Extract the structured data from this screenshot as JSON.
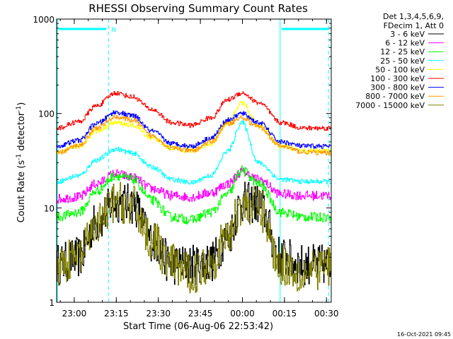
{
  "chart_data": {
    "type": "line",
    "title": "RHESSI Observing Summary Count Rates",
    "xlabel": "Start Time (06-Aug-06 22:53:42)",
    "ylabel": "Count Rate (s",
    "ylabel_sup1": "-1",
    "ylabel_mid": " detector",
    "ylabel_sup2": "-1",
    "ylabel_end": ")",
    "y_scale": "log",
    "ylim": [
      1,
      1000
    ],
    "xlim_minutes_after_start": [
      0,
      98
    ],
    "x_ticks": [
      {
        "label": "23:00",
        "minutes": 6.3
      },
      {
        "label": "23:15",
        "minutes": 21.3
      },
      {
        "label": "23:30",
        "minutes": 36.3
      },
      {
        "label": "23:45",
        "minutes": 51.3
      },
      {
        "label": "00:00",
        "minutes": 66.3
      },
      {
        "label": "00:15",
        "minutes": 81.3
      },
      {
        "label": "00:30",
        "minutes": 96.3
      }
    ],
    "y_ticks": [
      {
        "label": "1",
        "value": 1
      },
      {
        "label": "10",
        "value": 10
      },
      {
        "label": "100",
        "value": 100
      },
      {
        "label": "1000",
        "value": 1000
      }
    ],
    "legend": {
      "header1": "Det 1,3,4,5,6,9,",
      "header2": "FDecim 1, Att 0",
      "placement": "right"
    },
    "night_periods_minutes": [
      [
        0,
        18.5
      ],
      [
        79.5,
        98
      ]
    ],
    "night_label": "N",
    "saa_markers_minutes": [
      18.5,
      97
    ],
    "series": [
      {
        "name": "3 - 6 keV",
        "color": "#000000",
        "values": [
          2.5,
          3.0,
          7.0,
          11.5,
          11.0,
          4.5,
          2.5,
          2.5,
          2.7,
          5.0,
          11.5,
          11.0,
          3.0,
          2.5,
          2.5
        ]
      },
      {
        "name": "6 - 12 keV",
        "color": "#ff00ff",
        "values": [
          12.5,
          13.0,
          18.0,
          23.0,
          21.0,
          16.0,
          13.5,
          13.0,
          14.5,
          18.0,
          24.0,
          20.0,
          14.0,
          13.5,
          13.5
        ]
      },
      {
        "name": "12 - 25 keV",
        "color": "#00ff00",
        "values": [
          8.0,
          9.0,
          15.0,
          22.0,
          20.0,
          12.0,
          8.0,
          7.5,
          9.0,
          14.0,
          25.0,
          18.0,
          9.0,
          8.0,
          8.0
        ]
      },
      {
        "name": "25 - 50 keV",
        "color": "#00ffff",
        "values": [
          19.0,
          22.0,
          32.0,
          42.0,
          38.0,
          27.0,
          20.0,
          18.5,
          22.0,
          40.0,
          80.0,
          30.0,
          20.0,
          19.0,
          19.0
        ]
      },
      {
        "name": "50 - 100 keV",
        "color": "#ffff00",
        "values": [
          38.0,
          45.0,
          65.0,
          80.0,
          75.0,
          55.0,
          43.0,
          40.0,
          48.0,
          80.0,
          130.0,
          75.0,
          45.0,
          40.0,
          40.0
        ]
      },
      {
        "name": "100 - 300 keV",
        "color": "#ff0000",
        "values": [
          70.0,
          82.0,
          120.0,
          165.0,
          150.0,
          110.0,
          80.0,
          75.0,
          90.0,
          140.0,
          165.0,
          130.0,
          80.0,
          70.0,
          70.0
        ]
      },
      {
        "name": "300 - 800 keV",
        "color": "#0000ff",
        "values": [
          45.0,
          52.0,
          78.0,
          103.0,
          95.0,
          65.0,
          48.0,
          45.0,
          55.0,
          85.0,
          100.0,
          80.0,
          50.0,
          45.0,
          45.0
        ]
      },
      {
        "name": "800 - 7000 keV",
        "color": "#ff9900",
        "values": [
          38.0,
          46.0,
          70.0,
          92.0,
          85.0,
          58.0,
          43.0,
          40.0,
          50.0,
          78.0,
          90.0,
          72.0,
          45.0,
          39.0,
          38.0
        ]
      },
      {
        "name": "7000 - 15000 keV",
        "color": "#808000",
        "values": [
          2.5,
          3.0,
          6.5,
          11.5,
          10.5,
          4.5,
          2.5,
          2.0,
          2.7,
          5.0,
          11.0,
          10.0,
          2.5,
          2.0,
          2.5
        ]
      }
    ],
    "x_minutes": [
      0,
      8,
      14,
      21,
      27,
      34,
      41,
      48,
      55,
      61,
      66,
      72,
      80,
      88,
      98
    ]
  },
  "footer": {
    "date": "16-Oct-2021 09:45"
  },
  "colors": {
    "axis": "#000000",
    "night": "#00ffff",
    "background": "#ffffff"
  }
}
